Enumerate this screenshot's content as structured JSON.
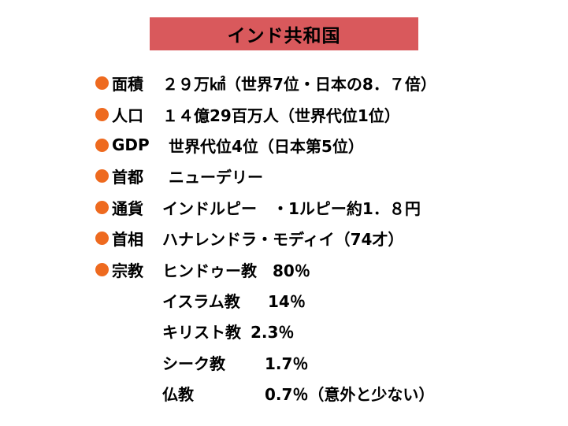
{
  "title": "インド共和国",
  "bullet_color": "#ee6a1f",
  "title_bg": "#d9595c",
  "items": [
    {
      "label": "面積",
      "value": "２９万㎢（世界7位・日本の8．７倍）"
    },
    {
      "label": "人口",
      "value": "１４億29百万人（世界代位1位）"
    },
    {
      "label": "GDP",
      "value": "世界代位4位（日本第5位）"
    },
    {
      "label": "首都",
      "value": "ニューデリー"
    },
    {
      "label": "通貨",
      "value": "インドルピー　・1ルピー約1．８円"
    },
    {
      "label": "首相",
      "value": "ハナレンドラ・モディイ（74才）"
    },
    {
      "label": "宗教",
      "value": "ヒンドゥー教　80％"
    }
  ],
  "religions": [
    {
      "name": "イスラム教",
      "pct": "14％"
    },
    {
      "name": "キリスト教",
      "pct": "2.3％"
    },
    {
      "name": "シーク教",
      "pct": "1.7％"
    },
    {
      "name": "仏教",
      "pct": "0.7％（意外と少ない）"
    }
  ]
}
